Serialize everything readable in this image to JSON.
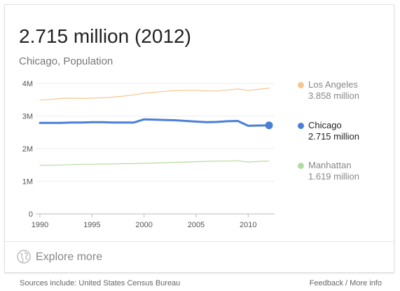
{
  "header": {
    "headline": "2.715 million (2012)",
    "subtitle": "Chicago, Population"
  },
  "legend": [
    {
      "name": "Los Angeles",
      "value": "3.858 million",
      "color": "#f4c78d",
      "name_color": "#888888",
      "value_color": "#888888"
    },
    {
      "name": "Chicago",
      "value": "2.715 million",
      "color": "#4a7fd8",
      "name_color": "#222222",
      "value_color": "#222222"
    },
    {
      "name": "Manhattan",
      "value": "1.619 million",
      "color": "#b5dca0",
      "name_color": "#888888",
      "value_color": "#888888"
    }
  ],
  "footer": {
    "explore_label": "Explore more",
    "globe_icon": "globe-icon"
  },
  "sources": "Sources include: United States Census Bureau",
  "feedback": "Feedback / More info",
  "chart_data": {
    "type": "line",
    "x_ticks": [
      1990,
      1995,
      2000,
      2005,
      2010
    ],
    "y_ticks": [
      0,
      1,
      2,
      3,
      4
    ],
    "y_tick_labels": [
      "0",
      "1M",
      "2M",
      "3M",
      "4M"
    ],
    "xlim": [
      1990,
      2012
    ],
    "ylim": [
      0,
      4
    ],
    "ylabel": "",
    "xlabel": "",
    "grid": true,
    "series": [
      {
        "name": "Los Angeles",
        "color": "#f4c78d",
        "width": 1.2,
        "x": [
          1990,
          1991,
          1992,
          1993,
          1994,
          1995,
          1996,
          1997,
          1998,
          1999,
          2000,
          2001,
          2002,
          2003,
          2004,
          2005,
          2006,
          2007,
          2008,
          2009,
          2010,
          2011,
          2012
        ],
        "values": [
          3.49,
          3.51,
          3.54,
          3.55,
          3.54,
          3.55,
          3.56,
          3.58,
          3.61,
          3.65,
          3.7,
          3.73,
          3.76,
          3.78,
          3.79,
          3.79,
          3.77,
          3.77,
          3.8,
          3.83,
          3.79,
          3.82,
          3.858
        ]
      },
      {
        "name": "Chicago",
        "color": "#4a7fd8",
        "width": 3,
        "x": [
          1990,
          1991,
          1992,
          1993,
          1994,
          1995,
          1996,
          1997,
          1998,
          1999,
          2000,
          2001,
          2002,
          2003,
          2004,
          2005,
          2006,
          2007,
          2008,
          2009,
          2010,
          2011,
          2012
        ],
        "values": [
          2.79,
          2.79,
          2.79,
          2.8,
          2.8,
          2.81,
          2.81,
          2.8,
          2.8,
          2.8,
          2.9,
          2.89,
          2.88,
          2.87,
          2.85,
          2.83,
          2.81,
          2.82,
          2.84,
          2.85,
          2.7,
          2.71,
          2.715
        ]
      },
      {
        "name": "Manhattan",
        "color": "#b5dca0",
        "width": 1.2,
        "x": [
          1990,
          1991,
          1992,
          1993,
          1994,
          1995,
          1996,
          1997,
          1998,
          1999,
          2000,
          2001,
          2002,
          2003,
          2004,
          2005,
          2006,
          2007,
          2008,
          2009,
          2010,
          2011,
          2012
        ],
        "values": [
          1.49,
          1.49,
          1.5,
          1.51,
          1.52,
          1.52,
          1.53,
          1.53,
          1.54,
          1.54,
          1.55,
          1.56,
          1.57,
          1.58,
          1.59,
          1.6,
          1.61,
          1.62,
          1.62,
          1.63,
          1.59,
          1.61,
          1.619
        ]
      }
    ],
    "highlight": {
      "series": "Chicago",
      "x": 2012,
      "value": 2.715
    }
  }
}
